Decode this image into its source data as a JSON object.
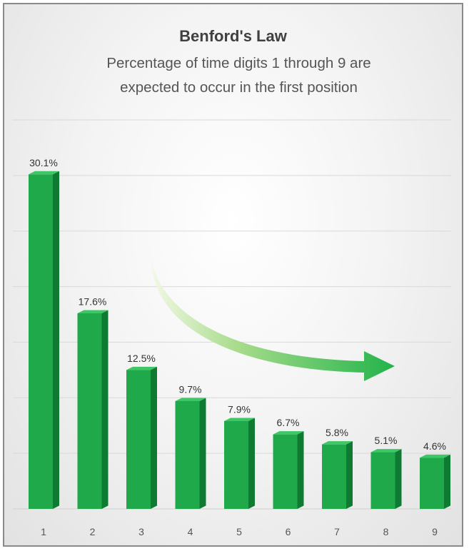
{
  "chart_data": {
    "type": "bar",
    "title": "Benford's Law",
    "subtitle_lines": [
      "Percentage of time digits 1 through 9 are",
      "expected to occur in the first position"
    ],
    "categories": [
      "1",
      "2",
      "3",
      "4",
      "5",
      "6",
      "7",
      "8",
      "9"
    ],
    "values": [
      30.1,
      17.6,
      12.5,
      9.7,
      7.9,
      6.7,
      5.8,
      5.1,
      4.6
    ],
    "data_labels": [
      "30.1%",
      "17.6%",
      "12.5%",
      "9.7%",
      "7.9%",
      "6.7%",
      "5.8%",
      "5.1%",
      "4.6%"
    ],
    "xlabel": "",
    "ylabel": "",
    "ylim": [
      0,
      35
    ],
    "grid": true,
    "legend": "none",
    "colors": {
      "bar_front": "#1fa94a",
      "bar_top": "#3cc865",
      "bar_side": "#0f7a32",
      "arrow": "#2fbf52"
    }
  }
}
